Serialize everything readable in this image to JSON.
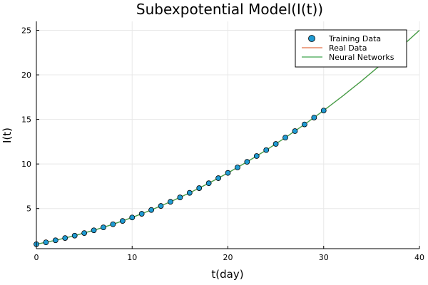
{
  "chart_data": {
    "type": "line",
    "title": "Subexpotential Model(I(t))",
    "xlabel": "t(day)",
    "ylabel": "I(t)",
    "xlim": [
      0,
      40
    ],
    "ylim": [
      0.5,
      26
    ],
    "xticks": [
      0,
      10,
      20,
      30,
      40
    ],
    "yticks": [
      5,
      10,
      15,
      20,
      25
    ],
    "grid": true,
    "legend_position": "top-right",
    "colors": {
      "training": "#1f9bd3",
      "real": "#e26f46",
      "neural": "#3da44d"
    },
    "series": [
      {
        "name": "Training Data",
        "kind": "scatter",
        "x": [
          0,
          1,
          2,
          3,
          4,
          5,
          6,
          7,
          8,
          9,
          10,
          11,
          12,
          13,
          14,
          15,
          16,
          17,
          18,
          19,
          20,
          21,
          22,
          23,
          24,
          25,
          26,
          27,
          28,
          29,
          30
        ],
        "y": [
          1.0,
          1.21,
          1.44,
          1.69,
          1.96,
          2.25,
          2.56,
          2.89,
          3.24,
          3.61,
          4.0,
          4.41,
          4.84,
          5.29,
          5.76,
          6.25,
          6.76,
          7.29,
          7.84,
          8.41,
          9.0,
          9.61,
          10.24,
          10.89,
          11.56,
          12.25,
          12.96,
          13.69,
          14.44,
          15.21,
          16.0
        ]
      },
      {
        "name": "Real Data",
        "kind": "line",
        "x": [
          0,
          2,
          4,
          6,
          8,
          10,
          12,
          14,
          16,
          18,
          20,
          22,
          24,
          26,
          28,
          30,
          32,
          34,
          36,
          38,
          40
        ],
        "y": [
          1.0,
          1.44,
          1.96,
          2.56,
          3.24,
          4.0,
          4.84,
          5.76,
          6.76,
          7.84,
          9.0,
          10.24,
          11.56,
          12.96,
          14.44,
          16.0,
          17.64,
          19.36,
          21.16,
          23.04,
          25.0
        ]
      },
      {
        "name": "Neural Networks",
        "kind": "line",
        "x": [
          0,
          2,
          4,
          6,
          8,
          10,
          12,
          14,
          16,
          18,
          20,
          22,
          24,
          26,
          28,
          30,
          32,
          34,
          36,
          38,
          40
        ],
        "y": [
          1.0,
          1.44,
          1.96,
          2.56,
          3.24,
          4.0,
          4.84,
          5.76,
          6.76,
          7.84,
          9.0,
          10.24,
          11.56,
          12.96,
          14.44,
          16.0,
          17.64,
          19.36,
          21.16,
          23.04,
          25.0
        ]
      }
    ]
  }
}
